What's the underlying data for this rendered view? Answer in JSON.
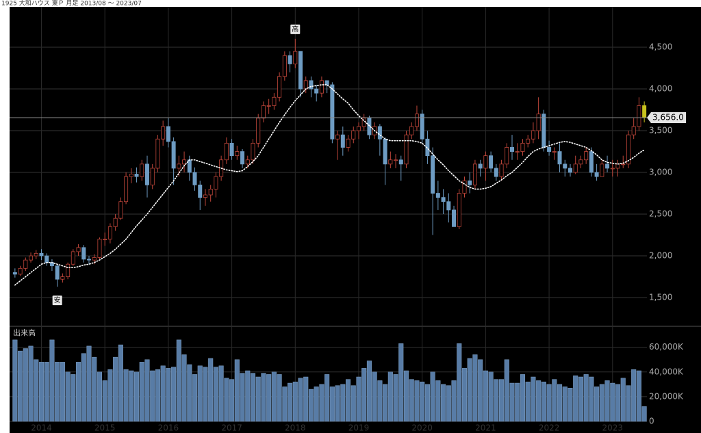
{
  "chart_data": [
    {
      "type": "candlestick",
      "title": "1925 大和ハウス 東Ｐ 月足 2013/08 ～ 2023/07",
      "categories": [
        null,
        null,
        null,
        null,
        null,
        "2014",
        null,
        null,
        null,
        null,
        null,
        null,
        null,
        null,
        null,
        null,
        null,
        "2015",
        null,
        null,
        null,
        null,
        null,
        null,
        null,
        null,
        null,
        null,
        null,
        "2016",
        null,
        null,
        null,
        null,
        null,
        null,
        null,
        null,
        null,
        null,
        null,
        "2017",
        null,
        null,
        null,
        null,
        null,
        null,
        null,
        null,
        null,
        null,
        null,
        "2018",
        null,
        null,
        null,
        null,
        null,
        null,
        null,
        null,
        null,
        null,
        null,
        "2019",
        null,
        null,
        null,
        null,
        null,
        null,
        null,
        null,
        null,
        null,
        null,
        "2020",
        null,
        null,
        null,
        null,
        null,
        null,
        null,
        null,
        null,
        null,
        null,
        "2021",
        null,
        null,
        null,
        null,
        null,
        null,
        null,
        null,
        null,
        null,
        null,
        "2022",
        null,
        null,
        null,
        null,
        null,
        null,
        null,
        null,
        null,
        null,
        null,
        "2023",
        null,
        null,
        null,
        null,
        null,
        null
      ],
      "open": [
        1800,
        1780,
        1850,
        1950,
        2000,
        2030,
        2000,
        1920,
        1880,
        1720,
        1750,
        1900,
        2050,
        2100,
        1960,
        1950,
        1980,
        2200,
        2200,
        2350,
        2450,
        2650,
        2950,
        2980,
        2950,
        3100,
        2850,
        3050,
        3400,
        3550,
        3370,
        3050,
        3100,
        3150,
        3000,
        2850,
        2700,
        2730,
        2800,
        2950,
        3150,
        3350,
        3200,
        3250,
        3100,
        3150,
        3350,
        3650,
        3800,
        3800,
        3900,
        4150,
        4400,
        4300,
        4450,
        4000,
        4100,
        4000,
        3950,
        4100,
        4050,
        3400,
        3450,
        3300,
        3400,
        3500,
        3550,
        3650,
        3450,
        3550,
        3400,
        3100,
        3150,
        3150,
        3100,
        3450,
        3550,
        3700,
        3400,
        3200,
        2750,
        2700,
        2650,
        2550,
        2350,
        2750,
        2900,
        2850,
        3100,
        3050,
        3200,
        3050,
        2950,
        3100,
        3300,
        3250,
        3250,
        3350,
        3400,
        3500,
        3700,
        3300,
        3250,
        3250,
        3100,
        3050,
        3000,
        3100,
        3150,
        3250,
        3000,
        2950,
        3100,
        3050,
        3050,
        3100,
        3100,
        3450,
        3550,
        3800
      ],
      "high": [
        1850,
        1880,
        1980,
        2040,
        2070,
        2080,
        2030,
        1960,
        1900,
        1790,
        1920,
        2080,
        2140,
        2130,
        2000,
        2020,
        2220,
        2280,
        2390,
        2500,
        2700,
        3000,
        3050,
        3060,
        3150,
        3200,
        3100,
        3450,
        3620,
        3650,
        3420,
        3200,
        3250,
        3200,
        3060,
        2900,
        2800,
        2850,
        3000,
        3200,
        3420,
        3400,
        3320,
        3280,
        3200,
        3400,
        3700,
        3850,
        3880,
        3950,
        4200,
        4450,
        4450,
        4600,
        4450,
        4150,
        4150,
        4050,
        4150,
        4100,
        4080,
        3500,
        3550,
        3450,
        3550,
        3600,
        3700,
        3680,
        3600,
        3580,
        3420,
        3250,
        3220,
        3200,
        3500,
        3600,
        3800,
        3750,
        3500,
        3300,
        2900,
        2800,
        2750,
        2600,
        2800,
        2950,
        3000,
        3150,
        3150,
        3250,
        3250,
        3100,
        3150,
        3350,
        3450,
        3350,
        3400,
        3450,
        3600,
        3900,
        3750,
        3380,
        3300,
        3350,
        3150,
        3100,
        3200,
        3200,
        3300,
        3300,
        3100,
        3150,
        3200,
        3150,
        3150,
        3200,
        3500,
        3650,
        3900,
        3850
      ],
      "low": [
        1740,
        1760,
        1820,
        1920,
        1960,
        1950,
        1880,
        1820,
        1630,
        1680,
        1720,
        1880,
        2000,
        1920,
        1900,
        1900,
        1960,
        2120,
        2150,
        2300,
        2430,
        2620,
        2870,
        2880,
        2900,
        2700,
        2800,
        3000,
        3320,
        3300,
        2850,
        2950,
        3000,
        2900,
        2780,
        2550,
        2600,
        2650,
        2700,
        2900,
        3100,
        3150,
        3150,
        3050,
        3050,
        3100,
        3300,
        3600,
        3700,
        3750,
        3850,
        4100,
        4200,
        4250,
        3900,
        3950,
        3900,
        3850,
        3900,
        3950,
        3350,
        3150,
        3200,
        3250,
        3350,
        3400,
        3500,
        3400,
        3400,
        3200,
        2850,
        3050,
        3050,
        2900,
        3050,
        3400,
        3500,
        3350,
        3100,
        2250,
        2550,
        2500,
        2400,
        2350,
        2320,
        2700,
        2750,
        2800,
        2950,
        2900,
        3000,
        2900,
        2900,
        3050,
        3150,
        3150,
        3200,
        3300,
        3350,
        3400,
        3250,
        3200,
        3150,
        3000,
        2950,
        2950,
        2980,
        3050,
        3100,
        2950,
        2900,
        2950,
        3000,
        2950,
        2950,
        3050,
        3050,
        3400,
        3500,
        3600
      ],
      "close": [
        1780,
        1850,
        1950,
        2000,
        2030,
        2000,
        1920,
        1880,
        1720,
        1750,
        1900,
        2050,
        2100,
        1960,
        1950,
        1980,
        2200,
        2200,
        2350,
        2450,
        2650,
        2950,
        2980,
        2950,
        3100,
        2850,
        3050,
        3400,
        3550,
        3370,
        3050,
        3100,
        3150,
        3000,
        2850,
        2700,
        2730,
        2800,
        2950,
        3150,
        3350,
        3200,
        3250,
        3100,
        3150,
        3350,
        3650,
        3800,
        3800,
        3900,
        4150,
        4400,
        4300,
        4450,
        4000,
        4100,
        4000,
        3950,
        4100,
        4050,
        3400,
        3450,
        3300,
        3400,
        3500,
        3550,
        3650,
        3450,
        3550,
        3400,
        3100,
        3150,
        3150,
        3100,
        3450,
        3550,
        3700,
        3400,
        3200,
        2750,
        2700,
        2650,
        2550,
        2350,
        2750,
        2900,
        2850,
        3100,
        3050,
        3200,
        3050,
        2950,
        3100,
        3300,
        3250,
        3250,
        3350,
        3400,
        3500,
        3700,
        3300,
        3250,
        3250,
        3100,
        3050,
        3000,
        3100,
        3150,
        3250,
        3000,
        2950,
        3100,
        3050,
        3050,
        3100,
        3100,
        3450,
        3550,
        3800,
        3656
      ],
      "ma": [
        1650,
        1700,
        1750,
        1800,
        1850,
        1900,
        1920,
        1920,
        1900,
        1880,
        1860,
        1860,
        1870,
        1890,
        1900,
        1920,
        1950,
        1990,
        2030,
        2080,
        2140,
        2200,
        2280,
        2360,
        2430,
        2500,
        2580,
        2660,
        2740,
        2820,
        2900,
        2990,
        3080,
        3150,
        3150,
        3130,
        3110,
        3090,
        3070,
        3050,
        3030,
        3020,
        3010,
        3020,
        3070,
        3130,
        3200,
        3300,
        3400,
        3500,
        3600,
        3690,
        3780,
        3860,
        3930,
        4000,
        4030,
        4040,
        4050,
        4050,
        4000,
        3940,
        3880,
        3830,
        3750,
        3680,
        3620,
        3560,
        3500,
        3450,
        3400,
        3380,
        3380,
        3380,
        3380,
        3380,
        3370,
        3350,
        3290,
        3220,
        3150,
        3090,
        3020,
        2960,
        2900,
        2860,
        2820,
        2800,
        2800,
        2810,
        2830,
        2870,
        2910,
        2960,
        3000,
        3060,
        3120,
        3190,
        3250,
        3280,
        3300,
        3320,
        3340,
        3360,
        3370,
        3360,
        3340,
        3320,
        3300,
        3260,
        3210,
        3150,
        3120,
        3110,
        3100,
        3110,
        3140,
        3180,
        3230,
        3270
      ],
      "ma_color": "#ffffff",
      "up_color": "#c0463a",
      "down_color": "#6e9cc3",
      "current_color": "#c8c21e",
      "last_price": {
        "value": 3656,
        "label": "3,656.0"
      },
      "high_label": "高",
      "low_label": "安",
      "ylim": [
        1156,
        4984
      ],
      "yticks": [
        {
          "value": 1500,
          "label": "1,500"
        },
        {
          "value": 2000,
          "label": "2,000"
        },
        {
          "value": 2500,
          "label": "2,500"
        },
        {
          "value": 3000,
          "label": "3,000"
        },
        {
          "value": 3500,
          "label": "3,500"
        },
        {
          "value": 4000,
          "label": "4,000"
        },
        {
          "value": 4500,
          "label": "4,500"
        }
      ],
      "grid": true
    },
    {
      "type": "bar",
      "title": "出来高",
      "values": [
        66000,
        57000,
        59000,
        61000,
        50000,
        48000,
        48000,
        66000,
        48000,
        48000,
        40000,
        38000,
        48000,
        55000,
        61000,
        52000,
        40000,
        33000,
        42000,
        52000,
        62000,
        42000,
        41000,
        40000,
        48000,
        50000,
        41000,
        42000,
        45000,
        43000,
        44000,
        66000,
        54000,
        46000,
        38000,
        45000,
        44000,
        51000,
        44000,
        45000,
        35000,
        34000,
        50000,
        39000,
        41000,
        39000,
        36000,
        39000,
        38000,
        40000,
        38000,
        28000,
        31000,
        32000,
        35000,
        36000,
        26000,
        28000,
        30000,
        38000,
        28000,
        29000,
        30000,
        34000,
        29000,
        36000,
        43000,
        49000,
        40000,
        33000,
        30000,
        40000,
        38000,
        63000,
        41000,
        34000,
        33000,
        32000,
        30000,
        40000,
        33000,
        30000,
        29000,
        33000,
        63000,
        43000,
        51000,
        54000,
        50000,
        41000,
        40000,
        34000,
        34000,
        50000,
        31000,
        31000,
        38000,
        32000,
        36000,
        33000,
        32000,
        30000,
        34000,
        30000,
        28000,
        27000,
        37000,
        36000,
        38000,
        36000,
        28000,
        30000,
        33000,
        31000,
        30000,
        35000,
        29000,
        42000,
        41000,
        12000
      ],
      "color": "#587ca6",
      "ylim": [
        0,
        77000
      ],
      "yticks": [
        0,
        {
          "value": 20000,
          "label": "20,000K"
        },
        {
          "value": 40000,
          "label": "40,000K"
        },
        {
          "value": 60000,
          "label": "60,000K"
        }
      ],
      "grid": true
    }
  ]
}
